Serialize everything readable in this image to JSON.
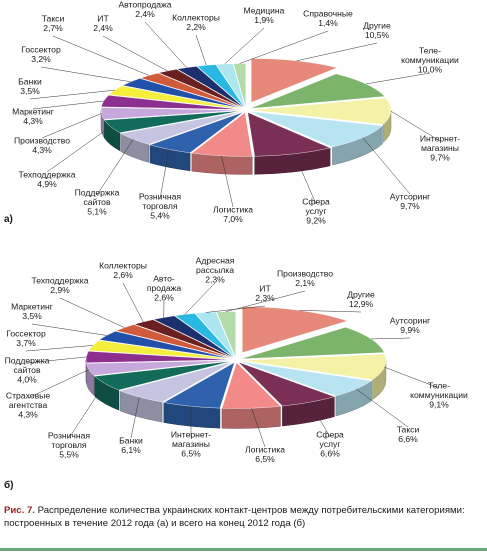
{
  "chart_data": [
    {
      "type": "pie",
      "panel_label": "а)",
      "slices": [
        {
          "label": "Другие",
          "value": "10,5%",
          "v": 10.5,
          "color": "#e6897a"
        },
        {
          "label": "Теле-коммуникации",
          "value": "10,0%",
          "v": 10.0,
          "color": "#7bb46a"
        },
        {
          "label": "Интернет-магазины",
          "value": "9,7%",
          "v": 9.7,
          "color": "#f3f2a6"
        },
        {
          "label": "Аутсоринг",
          "value": "9,7%",
          "v": 9.7,
          "color": "#b8e4f2"
        },
        {
          "label": "Сфера услуг",
          "value": "9,2%",
          "v": 9.2,
          "color": "#7a2f55"
        },
        {
          "label": "Логистика",
          "value": "7,0%",
          "v": 7.0,
          "color": "#f28a8a"
        },
        {
          "label": "Розничная торговля",
          "value": "5,4%",
          "v": 5.4,
          "color": "#2f62ad"
        },
        {
          "label": "Поддержка сайтов",
          "value": "5,1%",
          "v": 5.1,
          "color": "#c5c5e2"
        },
        {
          "label": "Техподдержка",
          "value": "4,9%",
          "v": 4.9,
          "color": "#136b5a"
        },
        {
          "label": "Производство",
          "value": "4,3%",
          "v": 4.3,
          "color": "#c6a8dd"
        },
        {
          "label": "Маркетинг",
          "value": "4,3%",
          "v": 4.3,
          "color": "#8c2f8f"
        },
        {
          "label": "Банки",
          "value": "3,5%",
          "v": 3.5,
          "color": "#f4ef3c"
        },
        {
          "label": "Госсектор",
          "value": "3,2%",
          "v": 3.2,
          "color": "#224fa8"
        },
        {
          "label": "Такси",
          "value": "2,7%",
          "v": 2.7,
          "color": "#d05a3c"
        },
        {
          "label": "ИТ",
          "value": "2,4%",
          "v": 2.4,
          "color": "#6a2020"
        },
        {
          "label": "Автопродажа",
          "value": "2,4%",
          "v": 2.4,
          "color": "#1c2f6e"
        },
        {
          "label": "Коллекторы",
          "value": "2,2%",
          "v": 2.2,
          "color": "#29b8e2"
        },
        {
          "label": "Медицина",
          "value": "1,9%",
          "v": 1.9,
          "color": "#aee6f0"
        },
        {
          "label": "Справочные",
          "value": "1,4%",
          "v": 1.4,
          "color": "#b3dba9"
        }
      ]
    },
    {
      "type": "pie",
      "panel_label": "б)",
      "slices": [
        {
          "label": "Другие",
          "value": "12,9%",
          "v": 12.9,
          "color": "#e6897a"
        },
        {
          "label": "Аутсоринг",
          "value": "9,9%",
          "v": 9.9,
          "color": "#7bb46a"
        },
        {
          "label": "Теле-коммуникации",
          "value": "9,1%",
          "v": 9.1,
          "color": "#f3f2a6"
        },
        {
          "label": "Такси",
          "value": "6,6%",
          "v": 6.6,
          "color": "#b8e4f2"
        },
        {
          "label": "Сфера услуг",
          "value": "6,6%",
          "v": 6.6,
          "color": "#7a2f55"
        },
        {
          "label": "Логистика",
          "value": "6,5%",
          "v": 6.5,
          "color": "#f28a8a"
        },
        {
          "label": "Интернет-магазины",
          "value": "6,5%",
          "v": 6.5,
          "color": "#2f62ad"
        },
        {
          "label": "Банки",
          "value": "6,1%",
          "v": 6.1,
          "color": "#c5c5e2"
        },
        {
          "label": "Розничная торговля",
          "value": "5,5%",
          "v": 5.5,
          "color": "#136b5a"
        },
        {
          "label": "Страховые агентства",
          "value": "4,3%",
          "v": 4.3,
          "color": "#c6a8dd"
        },
        {
          "label": "Поддержка сайтов",
          "value": "4,0%",
          "v": 4.0,
          "color": "#8c2f8f"
        },
        {
          "label": "Госсектор",
          "value": "3,7%",
          "v": 3.7,
          "color": "#f4ef3c"
        },
        {
          "label": "Маркетинг",
          "value": "3,5%",
          "v": 3.5,
          "color": "#224fa8"
        },
        {
          "label": "Техподдержка",
          "value": "2,9%",
          "v": 2.9,
          "color": "#d05a3c"
        },
        {
          "label": "Коллекторы",
          "value": "2,6%",
          "v": 2.6,
          "color": "#6a2020"
        },
        {
          "label": "Авто-продажа",
          "value": "2,6%",
          "v": 2.6,
          "color": "#1c2f6e"
        },
        {
          "label": "Адресная рассылка",
          "value": "2,3%",
          "v": 2.3,
          "color": "#29b8e2"
        },
        {
          "label": "ИТ",
          "value": "2,3%",
          "v": 2.3,
          "color": "#aee6f0"
        },
        {
          "label": "Производство",
          "value": "2,1%",
          "v": 2.1,
          "color": "#b3dba9"
        }
      ]
    }
  ],
  "caption": {
    "prefix": "Рис. 7.",
    "text": "Распределение количества украинских контакт-центров между потребительскими категориями: построенных в течение 2012 года (а) и всего на конец 2012 года (б)"
  }
}
